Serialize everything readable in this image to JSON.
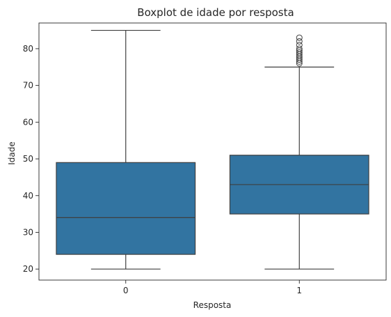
{
  "chart_data": {
    "type": "boxplot",
    "title": "Boxplot de idade por resposta",
    "xlabel": "Resposta",
    "ylabel": "Idade",
    "categories": [
      "0",
      "1"
    ],
    "ylim": [
      17,
      87
    ],
    "yticks": [
      20,
      30,
      40,
      50,
      60,
      70,
      80
    ],
    "yticklabels": [
      "20",
      "30",
      "40",
      "50",
      "60",
      "70",
      "80"
    ],
    "grid": false,
    "box_color": "#3274a1",
    "line_color": "#3f3f3f",
    "boxes": [
      {
        "category": "0",
        "whisker_low": 20,
        "q1": 24,
        "median": 34,
        "q3": 49,
        "whisker_high": 85,
        "outliers": []
      },
      {
        "category": "1",
        "whisker_low": 20,
        "q1": 35,
        "median": 43,
        "q3": 51,
        "whisker_high": 75,
        "outliers": [
          76,
          76.5,
          77,
          77.5,
          78,
          78.5,
          79,
          79.5,
          80,
          81,
          82,
          83
        ]
      }
    ]
  }
}
